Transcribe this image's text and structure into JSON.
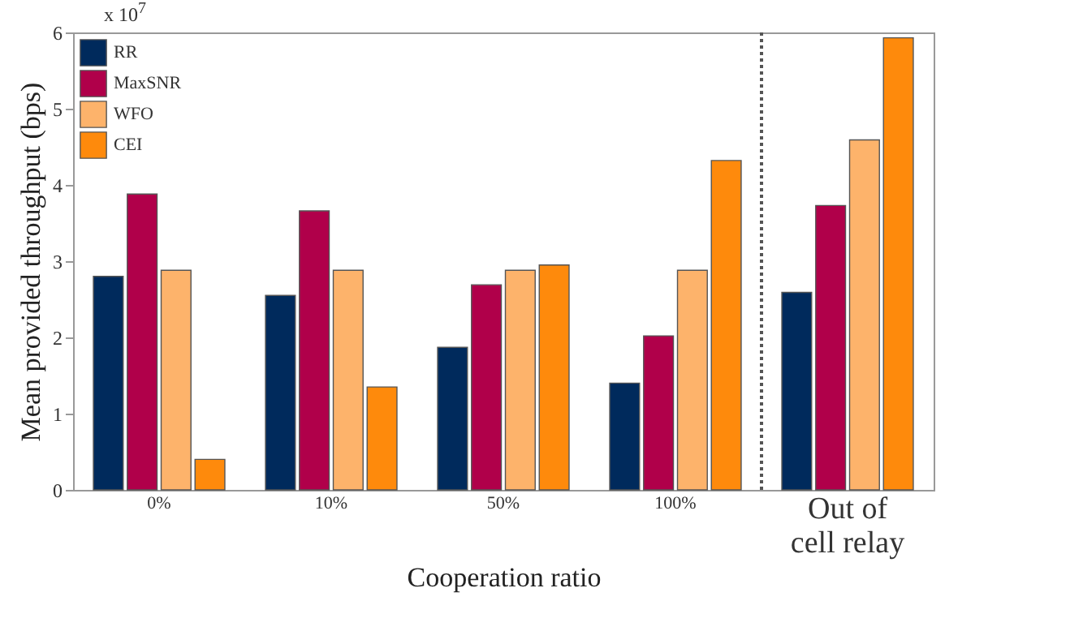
{
  "chart_data": {
    "type": "bar",
    "xlabel": "Cooperation ratio",
    "ylabel": "Mean provided throughput (bps)",
    "annotations": [
      "x 10$^{7}$"
    ],
    "categories": [
      "0%",
      "10%",
      "50%",
      "100%",
      "Out of cell relay"
    ],
    "series": [
      {
        "name": "RR",
        "color": "#002a5c",
        "values": [
          2.8,
          2.55,
          1.87,
          1.4,
          2.59
        ]
      },
      {
        "name": "MaxSNR",
        "color": "#b0004a",
        "values": [
          3.88,
          3.66,
          2.69,
          2.02,
          3.73
        ]
      },
      {
        "name": "WFO",
        "color": "#fdb36b",
        "values": [
          2.88,
          2.88,
          2.88,
          2.88,
          4.59
        ]
      },
      {
        "name": "CEI",
        "color": "#fe8a0c",
        "values": [
          0.4,
          1.35,
          2.95,
          4.32,
          5.93
        ]
      }
    ],
    "ylim": [
      0,
      6
    ],
    "yticks": [
      0,
      1,
      2,
      3,
      4,
      5,
      6
    ],
    "legend": "top left"
  }
}
